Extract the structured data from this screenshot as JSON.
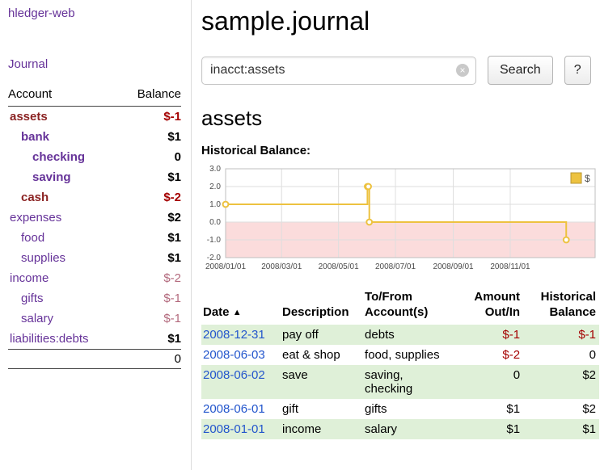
{
  "app": {
    "title": "hledger-web"
  },
  "sidebar": {
    "journal_link": "Journal",
    "accounts": {
      "header": {
        "account": "Account",
        "balance": "Balance"
      },
      "rows": [
        {
          "name": "assets",
          "balance": "$-1",
          "depth": 0,
          "bold": true,
          "name_color": "#8b2323",
          "balance_color": "#a40000",
          "balance_bold": true
        },
        {
          "name": "bank",
          "balance": "$1",
          "depth": 1,
          "bold": true,
          "name_color": "#663399",
          "balance_color": "#000000",
          "balance_bold": true
        },
        {
          "name": "checking",
          "balance": "0",
          "depth": 2,
          "bold": true,
          "name_color": "#663399",
          "balance_color": "#000000",
          "balance_bold": true
        },
        {
          "name": "saving",
          "balance": "$1",
          "depth": 2,
          "bold": true,
          "name_color": "#663399",
          "balance_color": "#000000",
          "balance_bold": true
        },
        {
          "name": "cash",
          "balance": "$-2",
          "depth": 1,
          "bold": true,
          "name_color": "#8b2323",
          "balance_color": "#a40000",
          "balance_bold": true
        },
        {
          "name": "expenses",
          "balance": "$2",
          "depth": 0,
          "bold": false,
          "name_color": "#663399",
          "balance_color": "#000000",
          "balance_bold": true
        },
        {
          "name": "food",
          "balance": "$1",
          "depth": 1,
          "bold": false,
          "name_color": "#663399",
          "balance_color": "#000000",
          "balance_bold": true
        },
        {
          "name": "supplies",
          "balance": "$1",
          "depth": 1,
          "bold": false,
          "name_color": "#663399",
          "balance_color": "#000000",
          "balance_bold": true
        },
        {
          "name": "income",
          "balance": "$-2",
          "depth": 0,
          "bold": false,
          "name_color": "#663399",
          "balance_color": "#b36a7d",
          "balance_bold": false
        },
        {
          "name": "gifts",
          "balance": "$-1",
          "depth": 1,
          "bold": false,
          "name_color": "#663399",
          "balance_color": "#b36a7d",
          "balance_bold": false
        },
        {
          "name": "salary",
          "balance": "$-1",
          "depth": 1,
          "bold": false,
          "name_color": "#663399",
          "balance_color": "#b36a7d",
          "balance_bold": false
        },
        {
          "name": "liabilities:debts",
          "balance": "$1",
          "depth": 0,
          "bold": false,
          "name_color": "#663399",
          "balance_color": "#000000",
          "balance_bold": true
        }
      ],
      "total": "0"
    }
  },
  "main": {
    "title": "sample.journal",
    "search": {
      "value": "inacct:assets",
      "clear_label": "×",
      "button_label": "Search",
      "help_label": "?"
    },
    "account_heading": "assets",
    "chart_title": "Historical Balance:"
  },
  "chart_data": {
    "type": "line",
    "title": "Historical Balance",
    "step": true,
    "series": [
      {
        "name": "$",
        "color": "#edc240",
        "points": [
          {
            "x": "2008-01-01",
            "y": 1
          },
          {
            "x": "2008-06-01",
            "y": 2
          },
          {
            "x": "2008-06-02",
            "y": 2
          },
          {
            "x": "2008-06-03",
            "y": 0
          },
          {
            "x": "2008-12-31",
            "y": -1
          }
        ]
      }
    ],
    "ylim": [
      -2.0,
      3.0
    ],
    "yticks": [
      3.0,
      2.0,
      1.0,
      0.0,
      -1.0,
      -2.0
    ],
    "xticks": [
      {
        "date": "2008-01-01",
        "label": "2008/01/01"
      },
      {
        "date": "2008-03-01",
        "label": "2008/03/01"
      },
      {
        "date": "2008-05-01",
        "label": "2008/05/01"
      },
      {
        "date": "2008-07-01",
        "label": "2008/07/01"
      },
      {
        "date": "2008-09-01",
        "label": "2008/09/01"
      },
      {
        "date": "2008-11-01",
        "label": "2008/11/01"
      }
    ],
    "x_domain": [
      "2008-01-01",
      "2009-01-31"
    ],
    "negative_region_color": "#fbdcdc",
    "grid": true,
    "legend": {
      "label": "$",
      "position": "top-right"
    }
  },
  "register": {
    "headers": {
      "date": "Date",
      "sort_indicator": "▲",
      "description": "Description",
      "accounts": "To/From Account(s)",
      "amount": "Amount Out/In",
      "balance": "Historical Balance"
    },
    "rows": [
      {
        "date": "2008-12-31",
        "description": "pay off",
        "accounts": "debts",
        "amount": "$-1",
        "amount_negative": true,
        "balance": "$-1",
        "balance_negative": true,
        "shaded": true
      },
      {
        "date": "2008-06-03",
        "description": "eat & shop",
        "accounts": "food, supplies",
        "amount": "$-2",
        "amount_negative": true,
        "balance": "0",
        "balance_negative": false,
        "shaded": false
      },
      {
        "date": "2008-06-02",
        "description": "save",
        "accounts": "saving, checking",
        "amount": "0",
        "amount_negative": false,
        "balance": "$2",
        "balance_negative": false,
        "shaded": true
      },
      {
        "date": "2008-06-01",
        "description": "gift",
        "accounts": "gifts",
        "amount": "$1",
        "amount_negative": false,
        "balance": "$2",
        "balance_negative": false,
        "shaded": false
      },
      {
        "date": "2008-01-01",
        "description": "income",
        "accounts": "salary",
        "amount": "$1",
        "amount_negative": false,
        "balance": "$1",
        "balance_negative": false,
        "shaded": true
      }
    ]
  },
  "colors": {
    "link_purple": "#663399",
    "link_blue": "#2255cc",
    "negative_red": "#a40000",
    "row_green": "#dff0d8",
    "chart_line": "#edc240"
  }
}
